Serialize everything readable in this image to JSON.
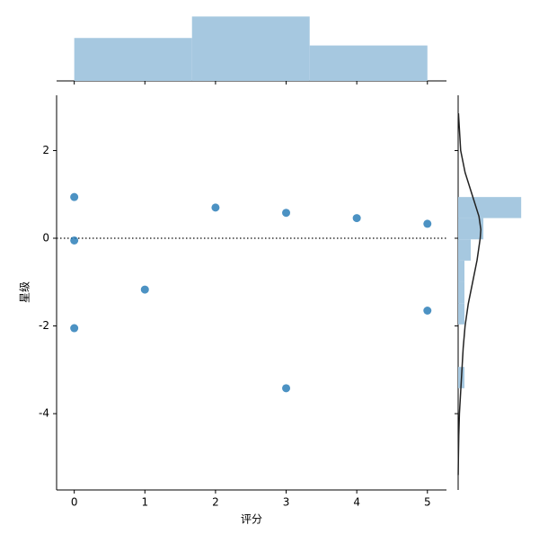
{
  "chart_data": {
    "type": "residual-joint",
    "xlabel": "评分",
    "ylabel": "星级",
    "x": [
      0,
      0,
      0,
      1,
      2,
      3,
      3,
      4,
      5,
      5
    ],
    "y": [
      0.94,
      -0.05,
      -2.05,
      -1.17,
      0.7,
      0.58,
      -3.42,
      0.46,
      0.33,
      -1.65
    ],
    "color": "#1f77b4",
    "xlim": [
      -0.25,
      5.27
    ],
    "xticks": [
      0,
      1,
      2,
      3,
      4,
      5
    ],
    "ylim": [
      -5.74,
      3.26
    ],
    "yticks": [
      -4,
      -2,
      0,
      2
    ],
    "reference_line": 0,
    "top_hist": {
      "bins": [
        0,
        1.667,
        3.333,
        5
      ],
      "counts": [
        4,
        6,
        3.3
      ],
      "ylim": [
        0,
        6.7
      ],
      "color": "#a6c8e0"
    },
    "right_hist": {
      "bins": [
        -3.42,
        -2.935,
        -2.45,
        -1.965,
        -1.48,
        -0.995,
        -0.51,
        -0.025,
        0.46,
        0.94
      ],
      "counts": [
        1,
        0,
        0,
        1,
        1,
        1,
        2,
        4,
        10
      ],
      "xlim": [
        0,
        11.4
      ],
      "color": "#a6c8e0"
    },
    "kde": {
      "y": [
        2.85,
        2,
        1.5,
        1,
        0.5,
        0.2,
        0,
        -0.5,
        -1,
        -1.5,
        -2,
        -2.5,
        -3,
        -3.5,
        -4,
        -4.5,
        -5,
        -5.4
      ],
      "density": [
        0.05,
        0.4,
        1.1,
        2.2,
        3.3,
        3.6,
        3.5,
        3.0,
        2.3,
        1.6,
        1.1,
        0.8,
        0.6,
        0.4,
        0.2,
        0.1,
        0.04,
        0.01
      ],
      "color": "#222222"
    }
  }
}
